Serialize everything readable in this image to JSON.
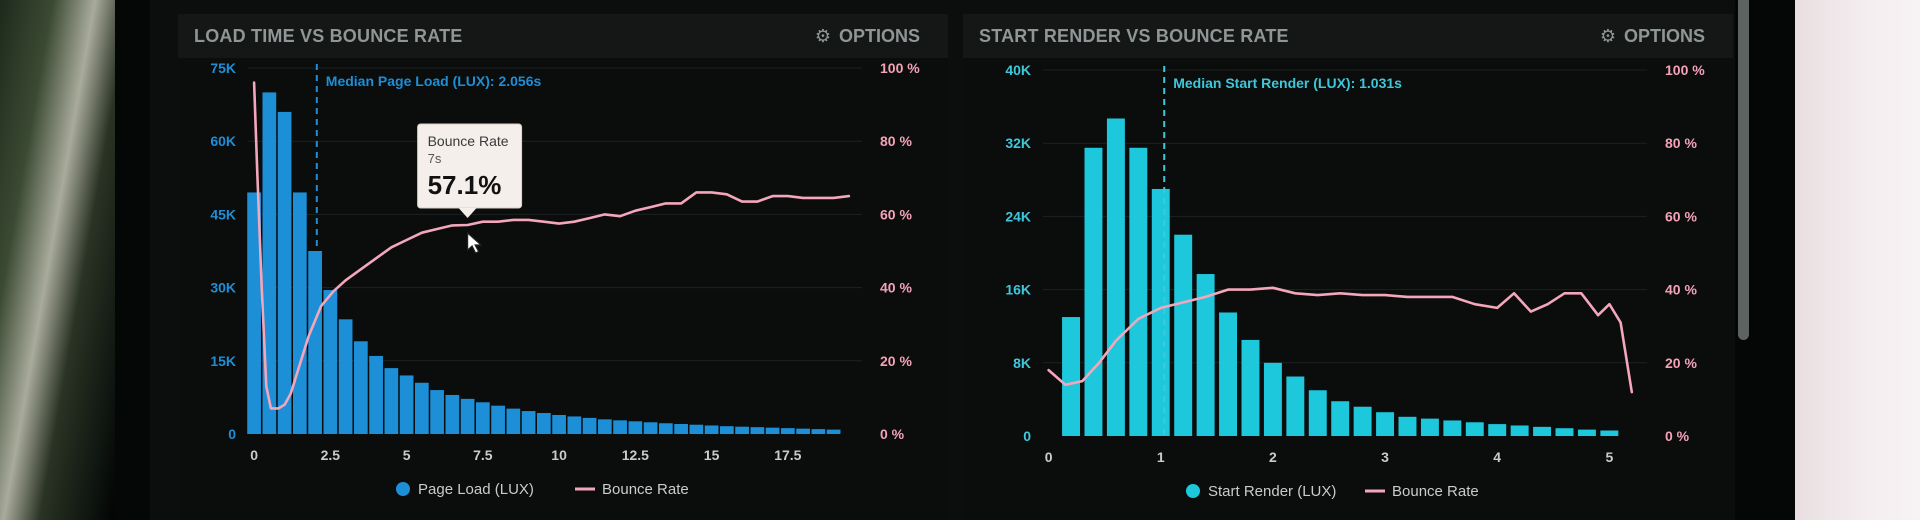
{
  "colors": {
    "page_load_bar": "#1c8fd6",
    "start_render_bar": "#1ec8dc",
    "bounce_rate_line": "#f4a6bb",
    "grid": "#1d2121",
    "axis_text_left_1": "#1e8fd6",
    "axis_text_left_2": "#3fc7da",
    "axis_text_right": "#f3a2b8",
    "x_tick_text": "#c9cccc",
    "legend_text": "#c9cccc",
    "header_text": "#8f9696"
  },
  "chart_data": [
    {
      "type": "bar",
      "title": "LOAD TIME VS BOUNCE RATE",
      "options_label": "OPTIONS",
      "options_icon": "gear-icon",
      "x_range": [
        -0.2,
        19.8
      ],
      "x_ticks": [
        0,
        2.5,
        5,
        7.5,
        10,
        12.5,
        15,
        17.5
      ],
      "x_tick_labels": [
        "0",
        "2.5",
        "5",
        "7.5",
        "10",
        "12.5",
        "15",
        "17.5"
      ],
      "y_left_range": [
        0,
        75000
      ],
      "y_left_ticks": [
        0,
        15000,
        30000,
        45000,
        60000,
        75000
      ],
      "y_left_tick_labels": [
        "0",
        "15K",
        "30K",
        "45K",
        "60K",
        "75K"
      ],
      "y_right_range": [
        0,
        100
      ],
      "y_right_ticks": [
        0,
        20,
        40,
        60,
        80,
        100
      ],
      "y_right_tick_labels": [
        "0 %",
        "20 %",
        "40 %",
        "60 %",
        "80 %",
        "100 %"
      ],
      "bar_width": 0.45,
      "series": [
        {
          "name": "Page Load (LUX)",
          "type": "bar",
          "x": [
            0,
            0.5,
            1,
            1.5,
            2,
            2.5,
            3,
            3.5,
            4,
            4.5,
            5,
            5.5,
            6,
            6.5,
            7,
            7.5,
            8,
            8.5,
            9,
            9.5,
            10,
            10.5,
            11,
            11.5,
            12,
            12.5,
            13,
            13.5,
            14,
            14.5,
            15,
            15.5,
            16,
            16.5,
            17,
            17.5,
            18,
            18.5,
            19
          ],
          "values": [
            49500,
            70000,
            66000,
            49500,
            37500,
            29500,
            23500,
            19000,
            16000,
            13500,
            12000,
            10500,
            9000,
            8000,
            7200,
            6500,
            5800,
            5200,
            4700,
            4300,
            3900,
            3600,
            3300,
            3000,
            2800,
            2600,
            2400,
            2200,
            2050,
            1900,
            1750,
            1600,
            1500,
            1400,
            1300,
            1200,
            1100,
            1000,
            900
          ]
        },
        {
          "name": "Bounce Rate",
          "type": "line",
          "x": [
            0,
            0.1,
            0.25,
            0.4,
            0.55,
            0.8,
            1.0,
            1.2,
            1.5,
            1.8,
            2.2,
            2.6,
            3.0,
            3.5,
            4.0,
            4.5,
            5.0,
            5.5,
            6.0,
            6.5,
            7.0,
            7.5,
            8.0,
            8.5,
            9.0,
            9.5,
            10.0,
            10.5,
            11.0,
            11.5,
            12.0,
            12.5,
            13.0,
            13.5,
            14.0,
            14.5,
            15.0,
            15.5,
            16.0,
            16.5,
            17.0,
            17.5,
            18.0,
            18.5,
            19.0,
            19.5
          ],
          "values": [
            96,
            72,
            40,
            13,
            7,
            7,
            8,
            11,
            19,
            27,
            35,
            39,
            42,
            45,
            48,
            51,
            53,
            55,
            56,
            57,
            57.1,
            58,
            58,
            58.5,
            58.5,
            58,
            57.5,
            58,
            59,
            60,
            59.5,
            61,
            62,
            63,
            63,
            66,
            66,
            65.5,
            63.5,
            63.5,
            65,
            65,
            64.5,
            64.5,
            64.5,
            65
          ]
        }
      ],
      "median_marker": {
        "x": 2.056,
        "label": "Median Page Load (LUX): 2.056s"
      },
      "tooltip": {
        "title": "Bounce Rate",
        "subtitle": "7s",
        "value": "57.1%",
        "x": 7,
        "y": 57.1
      },
      "legend": [
        {
          "label": "Page Load (LUX)",
          "marker": "dot",
          "color": "#1c8fd6"
        },
        {
          "label": "Bounce Rate",
          "marker": "line",
          "color": "#f4a6bb"
        }
      ]
    },
    {
      "type": "bar",
      "title": "START RENDER VS BOUNCE RATE",
      "options_label": "OPTIONS",
      "options_icon": "gear-icon",
      "x_range": [
        -0.05,
        5.3
      ],
      "x_ticks": [
        0,
        1,
        2,
        3,
        4,
        5
      ],
      "x_tick_labels": [
        "0",
        "1",
        "2",
        "3",
        "4",
        "5"
      ],
      "y_left_range": [
        0,
        40000
      ],
      "y_left_ticks": [
        0,
        8000,
        16000,
        24000,
        32000,
        40000
      ],
      "y_left_tick_labels": [
        "0",
        "8K",
        "16K",
        "24K",
        "32K",
        "40K"
      ],
      "y_right_range": [
        0,
        100
      ],
      "y_right_ticks": [
        0,
        20,
        40,
        60,
        80,
        100
      ],
      "y_right_tick_labels": [
        "0 %",
        "20 %",
        "40 %",
        "60 %",
        "80 %",
        "100 %"
      ],
      "bar_width": 0.16,
      "series": [
        {
          "name": "Start Render (LUX)",
          "type": "bar",
          "x": [
            0.2,
            0.4,
            0.6,
            0.8,
            1.0,
            1.2,
            1.4,
            1.6,
            1.8,
            2.0,
            2.2,
            2.4,
            2.6,
            2.8,
            3.0,
            3.2,
            3.4,
            3.6,
            3.8,
            4.0,
            4.2,
            4.4,
            4.6,
            4.8,
            5.0
          ],
          "values": [
            13000,
            31500,
            34700,
            31500,
            27000,
            22000,
            17700,
            13500,
            10500,
            8000,
            6500,
            5000,
            3800,
            3200,
            2600,
            2100,
            1900,
            1700,
            1500,
            1300,
            1150,
            1000,
            850,
            700,
            600
          ]
        },
        {
          "name": "Bounce Rate",
          "type": "line",
          "x": [
            0,
            0.15,
            0.3,
            0.45,
            0.6,
            0.8,
            1.0,
            1.2,
            1.4,
            1.6,
            1.8,
            2.0,
            2.2,
            2.4,
            2.6,
            2.8,
            3.0,
            3.2,
            3.4,
            3.6,
            3.8,
            4.0,
            4.15,
            4.3,
            4.45,
            4.6,
            4.75,
            4.9,
            5.0,
            5.1,
            5.2
          ],
          "values": [
            18,
            14,
            15,
            20,
            26,
            32,
            35,
            36.5,
            38,
            40,
            40,
            40.5,
            39,
            38.5,
            39,
            38.5,
            38.5,
            38,
            38,
            38,
            36,
            35,
            39,
            34,
            36,
            39,
            39,
            33,
            36,
            31,
            12
          ]
        }
      ],
      "median_marker": {
        "x": 1.031,
        "label": "Median Start Render (LUX): 1.031s"
      },
      "legend": [
        {
          "label": "Start Render (LUX)",
          "marker": "dot",
          "color": "#1ec8dc"
        },
        {
          "label": "Bounce Rate",
          "marker": "line",
          "color": "#f4a6bb"
        }
      ]
    }
  ]
}
